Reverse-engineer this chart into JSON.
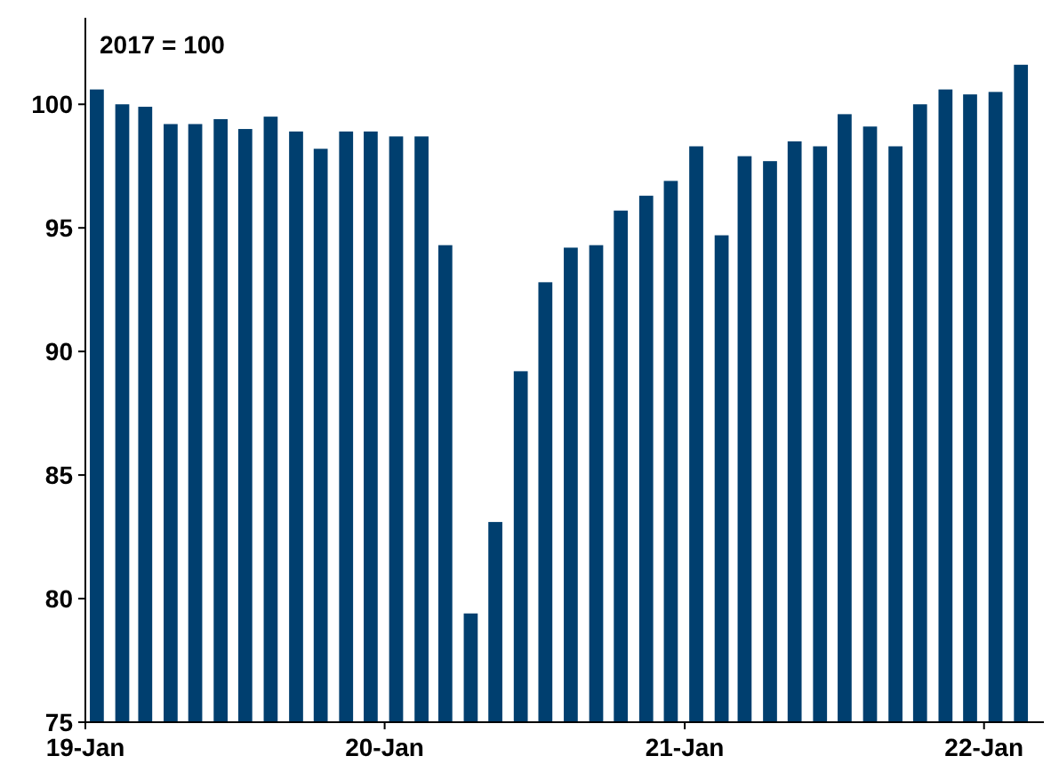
{
  "chart_data": {
    "type": "bar",
    "annotations": [
      "2017 = 100"
    ],
    "x": [
      "2019-01-15",
      "2019-02-15",
      "2019-03-15",
      "2019-04-15",
      "2019-05-15",
      "2019-06-15",
      "2019-07-15",
      "2019-08-15",
      "2019-09-15",
      "2019-10-15",
      "2019-11-15",
      "2019-12-15",
      "2020-01-15",
      "2020-02-15",
      "2020-03-15",
      "2020-04-15",
      "2020-05-15",
      "2020-06-15",
      "2020-07-15",
      "2020-08-15",
      "2020-09-15",
      "2020-10-15",
      "2020-11-15",
      "2020-12-15",
      "2021-01-15",
      "2021-02-15",
      "2021-03-15",
      "2021-04-15",
      "2021-05-15",
      "2021-06-15",
      "2021-07-15",
      "2021-08-15",
      "2021-09-15",
      "2021-10-15",
      "2021-11-15",
      "2021-12-15",
      "2022-01-15",
      "2022-02-15"
    ],
    "values": [
      100.6,
      100.0,
      99.9,
      99.2,
      99.2,
      99.4,
      99.0,
      99.5,
      98.9,
      98.2,
      98.9,
      98.9,
      98.7,
      98.7,
      94.3,
      79.4,
      83.1,
      89.2,
      92.8,
      94.2,
      94.3,
      95.7,
      96.3,
      96.9,
      98.3,
      94.7,
      97.9,
      97.7,
      98.5,
      98.3,
      99.6,
      99.1,
      98.3,
      100.0,
      100.6,
      100.4,
      100.5,
      101.6
    ],
    "color": "#003f6f",
    "xlim": [
      "2019-01-01",
      "2022-03-15"
    ],
    "xticks": [
      {
        "value": "2019-01-01",
        "label": "19-Jan"
      },
      {
        "value": "2020-01-01",
        "label": "20-Jan"
      },
      {
        "value": "2021-01-01",
        "label": "21-Jan"
      },
      {
        "value": "2022-01-01",
        "label": "22-Jan"
      }
    ],
    "ylim": [
      75,
      103.5
    ],
    "yticks": [
      75,
      80,
      85,
      90,
      95,
      100
    ],
    "grid": false
  }
}
